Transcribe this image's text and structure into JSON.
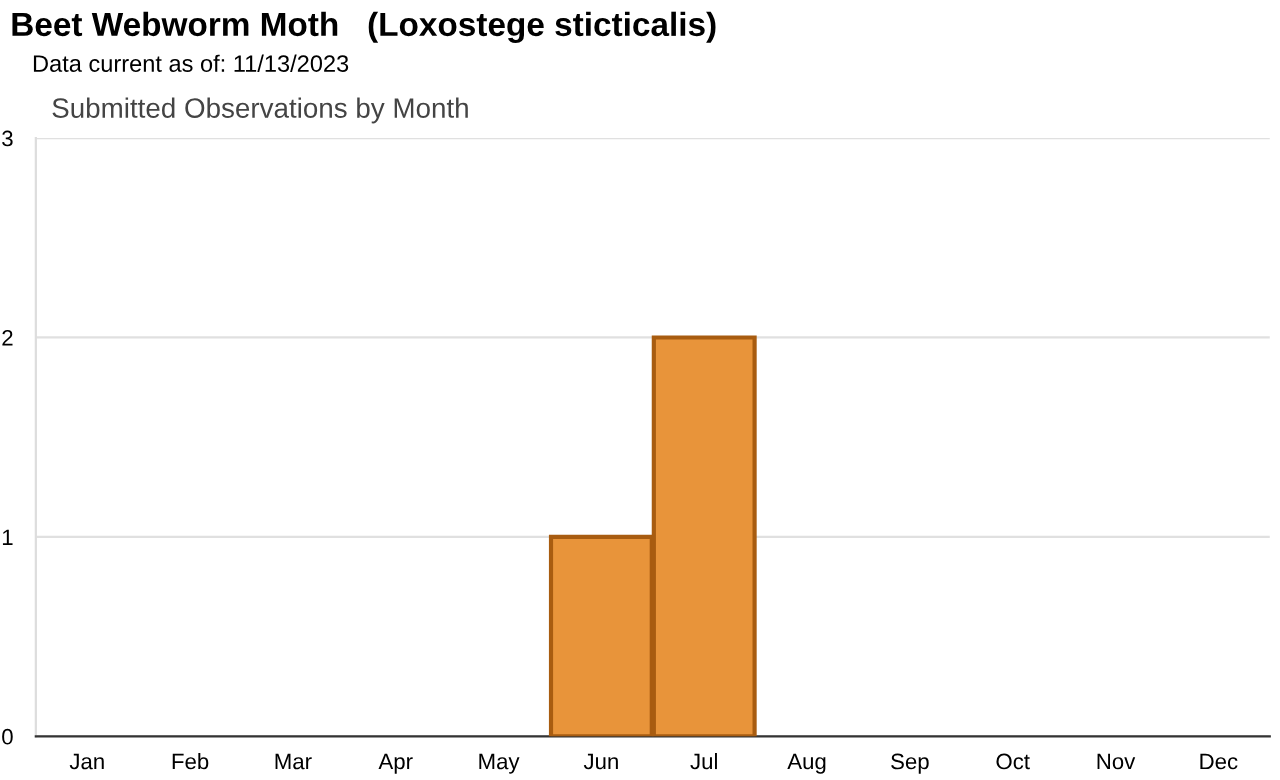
{
  "chart_data": {
    "type": "bar",
    "title": "Beet Webworm Moth   (Loxostege sticticalis)",
    "subtitle": "Data current as of: 11/13/2023",
    "annotations": [
      "Submitted Observations by Month"
    ],
    "categories": [
      "Jan",
      "Feb",
      "Mar",
      "Apr",
      "May",
      "Jun",
      "Jul",
      "Aug",
      "Sep",
      "Oct",
      "Nov",
      "Dec"
    ],
    "values": [
      0,
      0,
      0,
      0,
      0,
      1,
      2,
      0,
      0,
      0,
      0,
      0
    ],
    "color": "#e8943a",
    "ylim": [
      0,
      3
    ],
    "yticks": [
      0,
      1,
      2,
      3
    ],
    "grid": "y",
    "legend": false
  }
}
